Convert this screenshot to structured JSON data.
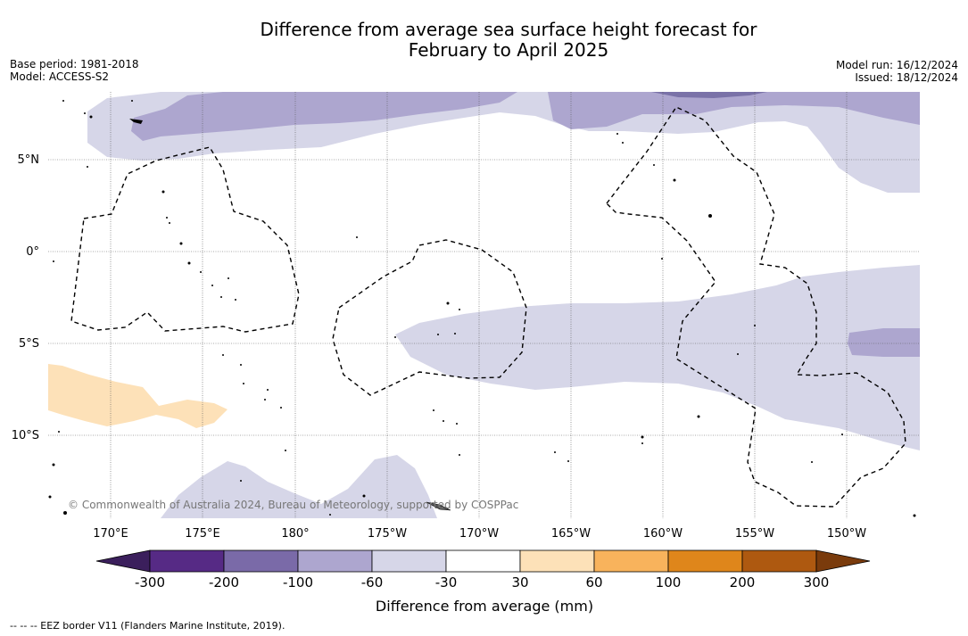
{
  "title_line1": "Difference from average sea surface height forecast for",
  "title_line2": "February to April 2025",
  "base_period": "Base period: 1981-2018",
  "model": "Model: ACCESS-S2",
  "model_run": "Model run: 16/12/2024",
  "issued": "Issued: 18/12/2024",
  "lat_labels": [
    "5°N",
    "0°",
    "5°S",
    "10°S"
  ],
  "lon_labels": [
    "170°E",
    "175°E",
    "180°",
    "175°W",
    "170°W",
    "165°W",
    "160°W",
    "155°W",
    "150°W"
  ],
  "copyright": "© Commonwealth of Australia 2024, Bureau of Meteorology, supported by COSPPac",
  "colorbar": {
    "ticks": [
      "-300",
      "-200",
      "-100",
      "-60",
      "-30",
      "30",
      "60",
      "100",
      "200",
      "300"
    ],
    "colors": [
      "#3b1f5c",
      "#562a85",
      "#7a6aa8",
      "#ada6cf",
      "#d6d6e8",
      "#ffffff",
      "#fde1b8",
      "#f8b35c",
      "#df861b",
      "#ae5910",
      "#7a3b0c"
    ],
    "label": "Difference from average (mm)"
  },
  "footer": "--  --  -- EEZ border V11 (Flanders Marine Institute, 2019)."
}
